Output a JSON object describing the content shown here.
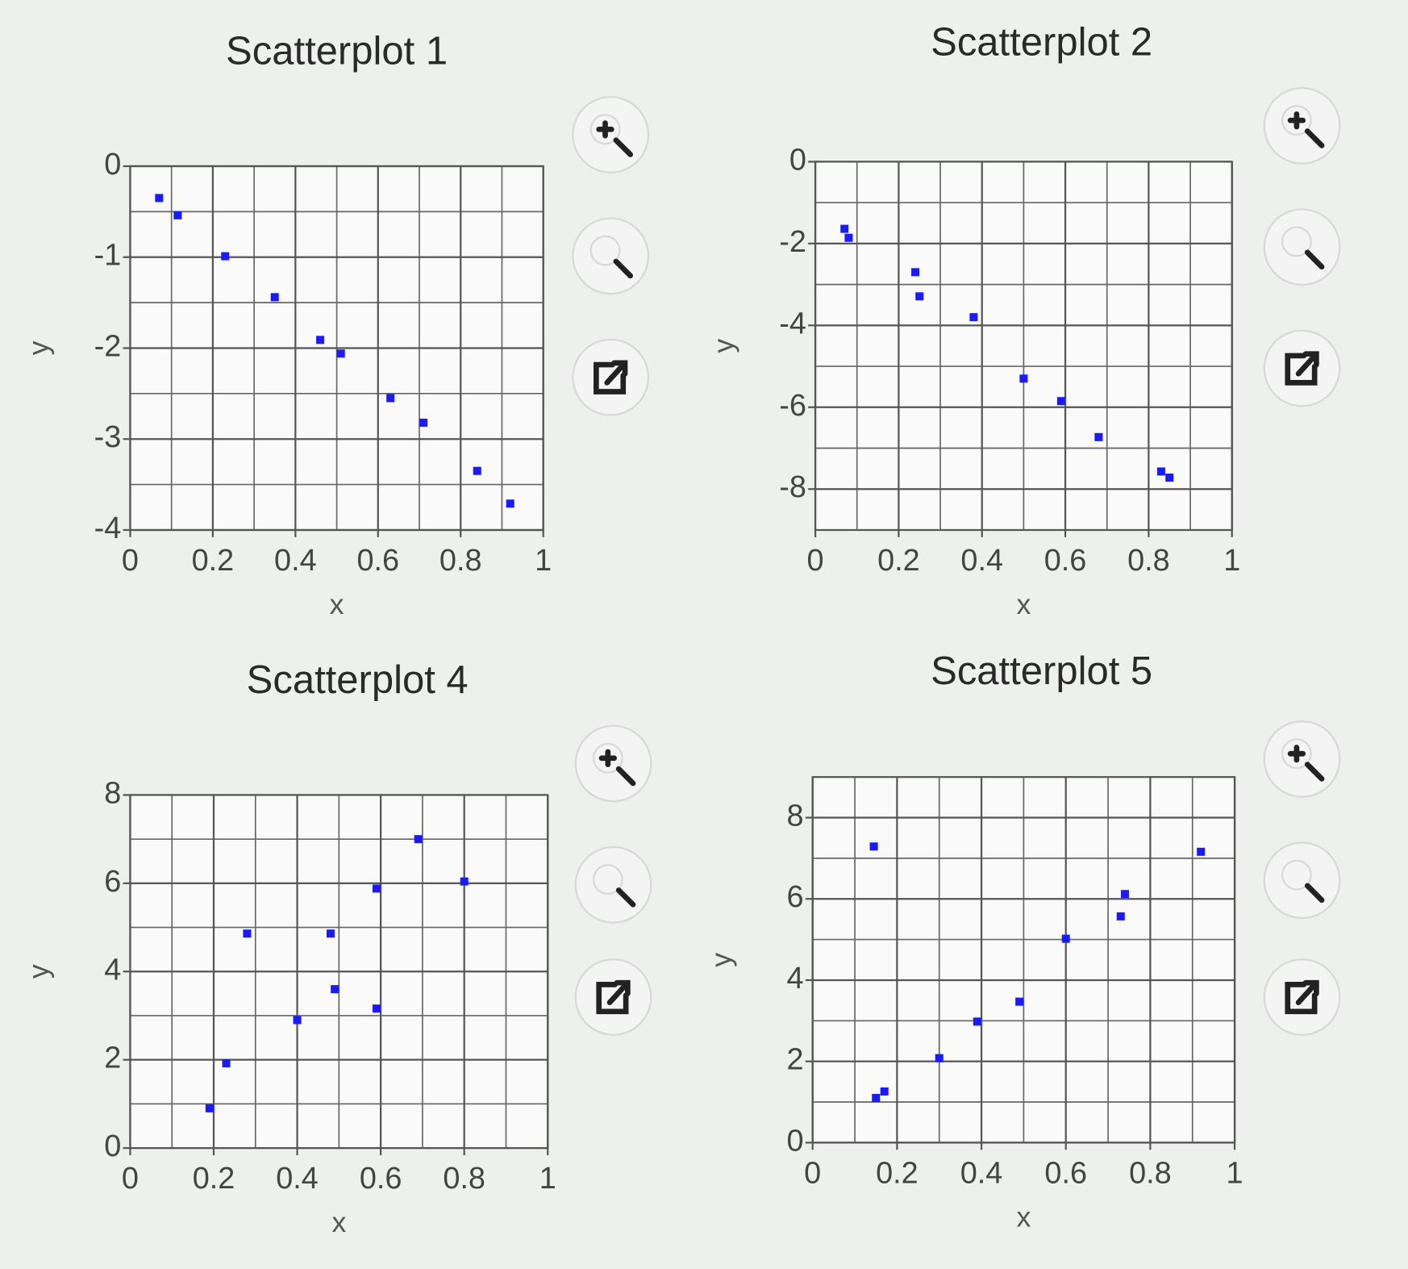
{
  "chart_data": [
    {
      "type": "scatter",
      "title": "Scatterplot 1",
      "x_label": "x",
      "y_label": "y",
      "color": "#1a1aff",
      "grid": true,
      "minor_grid": true,
      "x": [
        0.07,
        0.115,
        0.23,
        0.35,
        0.46,
        0.51,
        0.63,
        0.71,
        0.84,
        0.92
      ],
      "values": [
        -0.35,
        -0.54,
        -0.99,
        -1.44,
        -1.91,
        -2.06,
        -2.55,
        -2.82,
        -3.35,
        -3.71
      ],
      "xlim": [
        0,
        1
      ],
      "xticks": [
        0,
        0.2,
        0.4,
        0.6,
        0.8,
        1
      ],
      "ylim": [
        -4,
        0
      ],
      "yticks": [
        0,
        -1,
        -2,
        -3,
        -4
      ]
    },
    {
      "type": "scatter",
      "title": "Scatterplot 2",
      "x_label": "x",
      "y_label": "y",
      "color": "#1a1aff",
      "grid": true,
      "minor_grid": true,
      "x": [
        0.07,
        0.08,
        0.24,
        0.25,
        0.38,
        0.5,
        0.59,
        0.68,
        0.83,
        0.85
      ],
      "values": [
        -1.64,
        -1.86,
        -2.7,
        -3.29,
        -3.8,
        -5.3,
        -5.85,
        -6.73,
        -7.57,
        -7.72
      ],
      "xlim": [
        0,
        1
      ],
      "xticks": [
        0,
        0.2,
        0.4,
        0.6,
        0.8,
        1
      ],
      "ylim": [
        -9,
        0
      ],
      "yticks": [
        0,
        -2,
        -4,
        -6,
        -8
      ]
    },
    {
      "type": "scatter",
      "title": "Scatterplot 4",
      "x_label": "x",
      "y_label": "y",
      "color": "#1a1aff",
      "grid": true,
      "minor_grid": true,
      "x": [
        0.19,
        0.23,
        0.28,
        0.4,
        0.48,
        0.49,
        0.59,
        0.59,
        0.69,
        0.8
      ],
      "values": [
        0.9,
        1.92,
        4.86,
        2.9,
        4.86,
        3.6,
        5.88,
        3.16,
        7.0,
        6.04
      ],
      "xlim": [
        0,
        1
      ],
      "xticks": [
        0,
        0.2,
        0.4,
        0.6,
        0.8,
        1
      ],
      "ylim": [
        0,
        8
      ],
      "yticks": [
        0,
        2,
        4,
        6,
        8
      ]
    },
    {
      "type": "scatter",
      "title": "Scatterplot 5",
      "x_label": "x",
      "y_label": "y",
      "color": "#1a1aff",
      "grid": true,
      "minor_grid": true,
      "x": [
        0.145,
        0.15,
        0.17,
        0.3,
        0.39,
        0.49,
        0.6,
        0.73,
        0.74,
        0.92
      ],
      "values": [
        7.29,
        1.1,
        1.26,
        2.08,
        2.98,
        3.47,
        5.02,
        5.57,
        6.12,
        7.16
      ],
      "xlim": [
        0,
        1
      ],
      "xticks": [
        0,
        0.2,
        0.4,
        0.6,
        0.8,
        1
      ],
      "ylim": [
        0,
        9
      ],
      "yticks": [
        0,
        2,
        4,
        6,
        8
      ]
    }
  ]
}
